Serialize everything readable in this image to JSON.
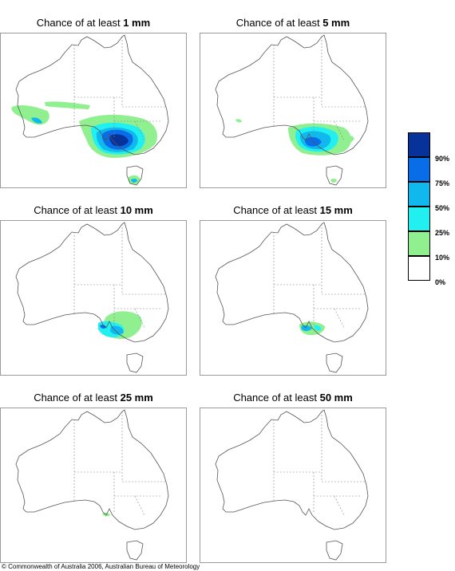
{
  "panels": [
    {
      "title_prefix": "Chance of at least",
      "amount": "1 mm"
    },
    {
      "title_prefix": "Chance of at least",
      "amount": "5 mm"
    },
    {
      "title_prefix": "Chance of at least",
      "amount": "10 mm"
    },
    {
      "title_prefix": "Chance of at least",
      "amount": "15 mm"
    },
    {
      "title_prefix": "Chance of at least",
      "amount": "25 mm"
    },
    {
      "title_prefix": "Chance of at least",
      "amount": "50 mm"
    }
  ],
  "legend": {
    "labels": [
      "90%",
      "75%",
      "50%",
      "25%",
      "10%",
      "0%"
    ],
    "colors": [
      "#07329a",
      "#0a6de8",
      "#10b8ee",
      "#22f0f0",
      "#90f090",
      "#ffffff"
    ]
  },
  "footer": "© Commonwealth of Australia 2006, Australian Bureau of Meteorology"
}
